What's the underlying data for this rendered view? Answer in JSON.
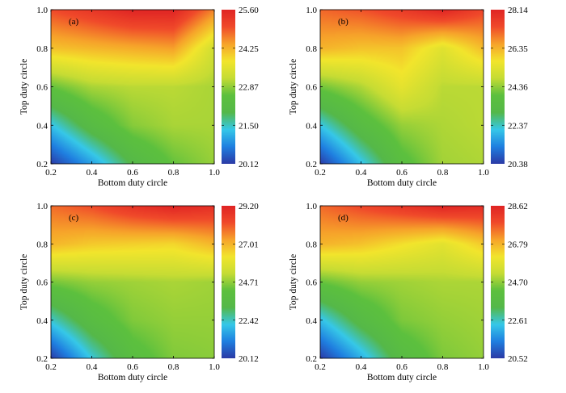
{
  "figure": {
    "colormap": [
      "#2b3aa6",
      "#1f7fe0",
      "#36c8e8",
      "#55b849",
      "#5cc03e",
      "#c6dc34",
      "#f2e52c",
      "#f6a32a",
      "#f04a2a",
      "#e02424"
    ]
  },
  "chart_data": [
    {
      "type": "heatmap",
      "panel_label": "(a)",
      "xlabel": "Bottom duty circle",
      "ylabel": "Top duty circle",
      "xlim": [
        0.2,
        1.0
      ],
      "ylim": [
        0.2,
        1.0
      ],
      "xticks": [
        "0.2",
        "0.4",
        "0.6",
        "0.8",
        "1.0"
      ],
      "yticks": [
        "0.2",
        "0.4",
        "0.6",
        "0.8",
        "1.0"
      ],
      "x": [
        0.2,
        0.4,
        0.6,
        0.8,
        1.0
      ],
      "y": [
        0.2,
        0.4,
        0.6,
        0.8,
        1.0
      ],
      "z": [
        [
          20.12,
          21.0,
          22.0,
          22.6,
          22.9
        ],
        [
          21.3,
          22.2,
          22.8,
          23.0,
          23.0
        ],
        [
          22.6,
          23.0,
          23.1,
          23.1,
          23.0
        ],
        [
          24.1,
          24.2,
          24.3,
          24.4,
          23.3
        ],
        [
          25.0,
          25.3,
          25.6,
          25.6,
          24.6
        ]
      ],
      "colorbar": {
        "min": 20.12,
        "max": 25.6,
        "ticks": [
          "25.60",
          "24.25",
          "22.87",
          "21.50",
          "20.12"
        ]
      }
    },
    {
      "type": "heatmap",
      "panel_label": "(b)",
      "xlabel": "Bottom duty circle",
      "ylabel": "Top duty circle",
      "xlim": [
        0.2,
        1.0
      ],
      "ylim": [
        0.2,
        1.0
      ],
      "xticks": [
        "0.2",
        "0.4",
        "0.6",
        "0.8",
        "1.0"
      ],
      "yticks": [
        "0.2",
        "0.4",
        "0.6",
        "0.8",
        "1.0"
      ],
      "x": [
        0.2,
        0.4,
        0.6,
        0.8,
        1.0
      ],
      "y": [
        0.2,
        0.4,
        0.6,
        0.8,
        1.0
      ],
      "z": [
        [
          20.38,
          22.0,
          23.6,
          24.4,
          24.5
        ],
        [
          22.1,
          23.4,
          24.3,
          24.5,
          24.6
        ],
        [
          24.0,
          24.5,
          25.3,
          24.6,
          24.6
        ],
        [
          26.2,
          26.0,
          26.0,
          25.2,
          26.1
        ],
        [
          27.0,
          27.2,
          27.6,
          28.14,
          27.4
        ]
      ],
      "colorbar": {
        "min": 20.38,
        "max": 28.14,
        "ticks": [
          "28.14",
          "26.35",
          "24.36",
          "22.37",
          "20.38"
        ]
      }
    },
    {
      "type": "heatmap",
      "panel_label": "(c)",
      "xlabel": "Bottom duty circle",
      "ylabel": "Top duty circle",
      "xlim": [
        0.2,
        1.0
      ],
      "ylim": [
        0.2,
        1.0
      ],
      "xticks": [
        "0.2",
        "0.4",
        "0.6",
        "0.8",
        "1.0"
      ],
      "yticks": [
        "0.2",
        "0.4",
        "0.6",
        "0.8",
        "1.0"
      ],
      "x": [
        0.2,
        0.4,
        0.6,
        0.8,
        1.0
      ],
      "y": [
        0.2,
        0.4,
        0.6,
        0.8,
        1.0
      ],
      "z": [
        [
          20.12,
          22.2,
          23.8,
          24.5,
          24.6
        ],
        [
          22.3,
          23.7,
          24.5,
          24.7,
          24.7
        ],
        [
          24.4,
          24.7,
          24.8,
          24.9,
          24.8
        ],
        [
          26.9,
          26.6,
          26.5,
          26.4,
          26.9
        ],
        [
          27.8,
          28.2,
          28.8,
          29.2,
          28.9
        ]
      ],
      "colorbar": {
        "min": 20.12,
        "max": 29.2,
        "ticks": [
          "29.20",
          "27.01",
          "24.71",
          "22.42",
          "20.12"
        ]
      }
    },
    {
      "type": "heatmap",
      "panel_label": "(d)",
      "xlabel": "Bottom duty circle",
      "ylabel": "Top duty circle",
      "xlim": [
        0.2,
        1.0
      ],
      "ylim": [
        0.2,
        1.0
      ],
      "xticks": [
        "0.2",
        "0.4",
        "0.6",
        "0.8",
        "1.0"
      ],
      "yticks": [
        "0.2",
        "0.4",
        "0.6",
        "0.8",
        "1.0"
      ],
      "x": [
        0.2,
        0.4,
        0.6,
        0.8,
        1.0
      ],
      "y": [
        0.2,
        0.4,
        0.6,
        0.8,
        1.0
      ],
      "z": [
        [
          20.52,
          22.0,
          23.6,
          24.4,
          24.6
        ],
        [
          22.2,
          23.5,
          24.4,
          24.6,
          24.7
        ],
        [
          24.2,
          24.6,
          24.7,
          24.8,
          24.8
        ],
        [
          26.6,
          26.4,
          26.0,
          25.6,
          26.3
        ],
        [
          27.4,
          27.8,
          28.2,
          28.62,
          28.4
        ]
      ],
      "colorbar": {
        "min": 20.52,
        "max": 28.62,
        "ticks": [
          "28.62",
          "26.79",
          "24.70",
          "22.61",
          "20.52"
        ]
      }
    }
  ]
}
